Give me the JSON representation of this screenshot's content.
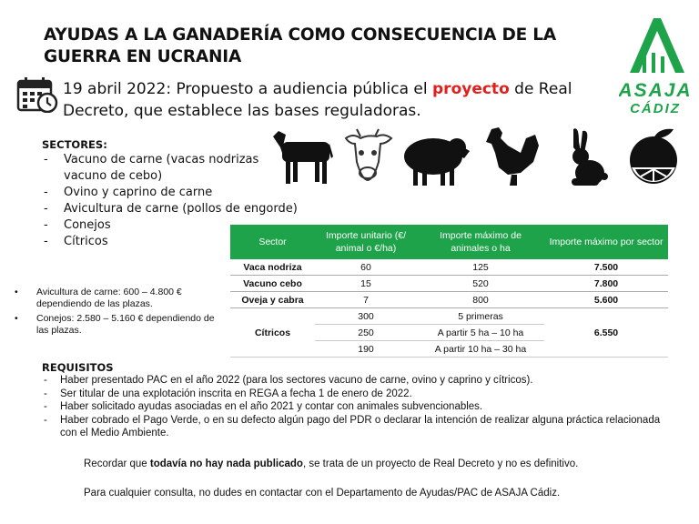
{
  "title": "AYUDAS A LA GANADERÍA COMO CONSECUENCIA DE LA GUERRA EN UCRANIA",
  "logo": {
    "line1": "ASAJA",
    "line2": "CÁDIZ",
    "color": "#1ea34a"
  },
  "headline": {
    "pre": "19 abril 2022: Propuesto a audiencia pública el ",
    "highlight": "proyecto",
    "post": " de Real Decreto, que establece las bases reguladoras."
  },
  "sectors": {
    "heading": "SECTORES:",
    "items": [
      {
        "text": "Vacuno de carne (vacas nodrizas",
        "cont": "vacuno de cebo)"
      },
      {
        "text": "Ovino y caprino de carne"
      },
      {
        "text": "Avicultura de carne (pollos de engorde)"
      },
      {
        "text": "Conejos"
      },
      {
        "text": "Cítricos"
      }
    ]
  },
  "animal_icons": [
    "cow-icon",
    "calf-icon",
    "sheep-icon",
    "rooster-icon",
    "rabbit-icon",
    "orange-icon"
  ],
  "notes": [
    "Avicultura de carne: 600 – 4.800 € dependiendo de las plazas.",
    "Conejos: 2.580 – 5.160 € dependiendo de las plazas."
  ],
  "table": {
    "headers": [
      "Sector",
      "Importe unitario (€/ animal o €/ha)",
      "Importe máximo de animales o ha",
      "Importe máximo por sector"
    ],
    "rows": [
      {
        "sector": "Vaca nodriza",
        "unit": "60",
        "max_units": "125",
        "max_sector": "7.500"
      },
      {
        "sector": "Vacuno cebo",
        "unit": "15",
        "max_units": "520",
        "max_sector": "7.800"
      },
      {
        "sector": "Oveja y cabra",
        "unit": "7",
        "max_units": "800",
        "max_sector": "5.600"
      }
    ],
    "citricos": {
      "sector": "Cítricos",
      "max_sector": "6.550",
      "tiers": [
        {
          "unit": "300",
          "range": "5 primeras"
        },
        {
          "unit": "250",
          "range": "A partir 5 ha – 10 ha"
        },
        {
          "unit": "190",
          "range": "A partir 10 ha – 30 ha"
        }
      ]
    },
    "header_color": "#1ea34a"
  },
  "requirements": {
    "heading": "REQUISITOS",
    "items": [
      "Haber presentado PAC en el año 2022 (para los sectores vacuno de carne, ovino y caprino y cítricos).",
      "Ser titular de una explotación inscrita en REGA a fecha 1 de enero de 2022.",
      "Haber solicitado ayudas asociadas en el año 2021 y contar con animales subvencionables.",
      "Haber cobrado el Pago Verde, o en su defecto algún pago del PDR o declarar la intención de realizar alguna práctica relacionada con el Medio Ambiente."
    ]
  },
  "reminder": {
    "pre": "Recordar que ",
    "bold": "todavía no hay nada publicado",
    "post": ", se trata de un proyecto de Real Decreto y no es definitivo."
  },
  "contact": "Para cualquier consulta, no dudes en contactar con el Departamento de Ayudas/PAC de ASAJA Cádiz."
}
